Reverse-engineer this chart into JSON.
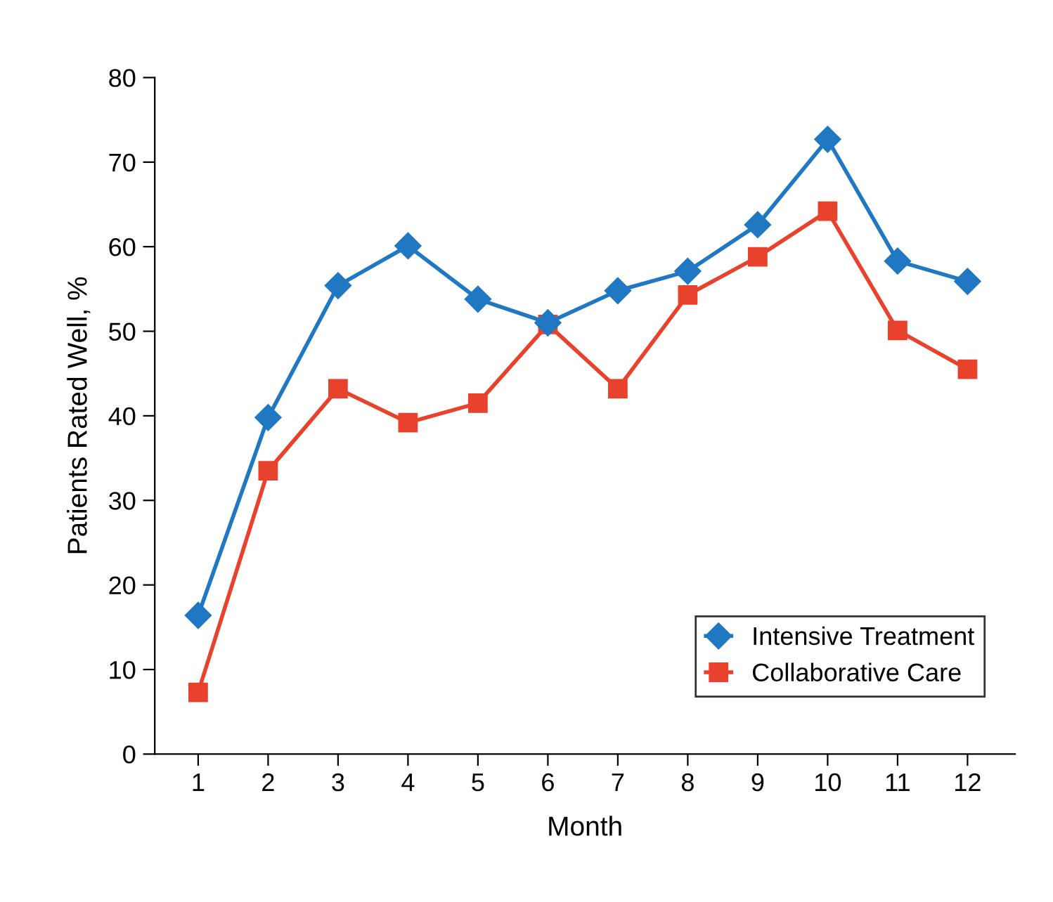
{
  "chart_data": {
    "type": "line",
    "xlabel": "Month",
    "ylabel": "Patients Rated Well, %",
    "categories": [
      "1",
      "2",
      "3",
      "4",
      "5",
      "6",
      "7",
      "8",
      "9",
      "10",
      "11",
      "12"
    ],
    "series": [
      {
        "name": "Intensive Treatment",
        "color": "#1f78c1",
        "marker": "diamond",
        "values": [
          16.4,
          39.8,
          55.4,
          60.1,
          53.8,
          51.0,
          54.8,
          57.1,
          62.6,
          72.7,
          58.3,
          55.9
        ]
      },
      {
        "name": "Collaborative Care",
        "color": "#e8412c",
        "marker": "square",
        "values": [
          7.3,
          33.5,
          43.2,
          39.2,
          41.5,
          50.8,
          43.2,
          54.3,
          58.8,
          64.2,
          50.1,
          45.5
        ]
      }
    ],
    "ylim": [
      0,
      80
    ],
    "yticks": [
      0,
      10,
      20,
      30,
      40,
      50,
      60,
      70,
      80
    ],
    "grid": false,
    "legend": "bottom right",
    "line_style": "solid"
  }
}
